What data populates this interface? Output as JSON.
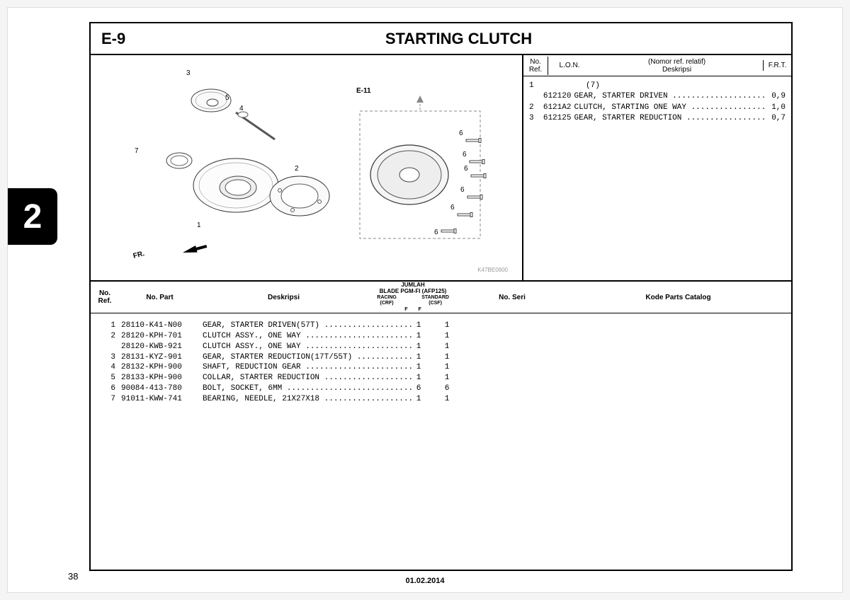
{
  "section_number": "2",
  "page_number": "38",
  "footer_date": "01.02.2014",
  "header": {
    "code": "E-9",
    "title": "STARTING CLUTCH"
  },
  "ref_panel": {
    "headers": {
      "ref": "No.\nRef.",
      "lon": "L.O.N.",
      "nomor": "(Nomor ref. relatif)",
      "desk": "Deskripsi",
      "frt": "F.R.T."
    },
    "rows": [
      {
        "ref": "1",
        "lon": "",
        "desk": "(7)",
        "frt": ""
      },
      {
        "ref": "",
        "lon": "612120",
        "desk": "GEAR, STARTER DRIVEN ....................",
        "frt": "0,9"
      },
      {
        "ref": "2",
        "lon": "6121A2",
        "desk": "CLUTCH, STARTING ONE WAY ................",
        "frt": "1,0"
      },
      {
        "ref": "3",
        "lon": "612125",
        "desk": "GEAR, STARTER REDUCTION .................",
        "frt": "0,7"
      }
    ]
  },
  "parts_table": {
    "headers": {
      "ref": "No.\nRef.",
      "part": "No. Part",
      "desk": "Deskripsi",
      "qty_title": "JUMLAH",
      "qty_sub": "BLADE PGM-FI (AFP125)",
      "qty_racing": "RACING (CRF)",
      "qty_standard": "STANDARD (CSF)",
      "qty_f1": "F",
      "qty_f2": "F",
      "seri": "No. Seri",
      "kode": "Kode Parts Catalog"
    },
    "rows": [
      {
        "ref": "1",
        "part": "28110-K41-N00",
        "desk": "GEAR, STARTER DRIVEN(57T) ...................",
        "q1": "1",
        "q2": "1"
      },
      {
        "ref": "2",
        "part": "28120-KPH-701",
        "desk": "CLUTCH ASSY., ONE WAY .......................",
        "q1": "1",
        "q2": "1"
      },
      {
        "ref": "",
        "part": "28120-KWB-921",
        "desk": "CLUTCH ASSY., ONE WAY .......................",
        "q1": "1",
        "q2": "1"
      },
      {
        "ref": "3",
        "part": "28131-KYZ-901",
        "desk": "GEAR, STARTER REDUCTION(17T/55T) ............",
        "q1": "1",
        "q2": "1"
      },
      {
        "ref": "4",
        "part": "28132-KPH-900",
        "desk": "SHAFT, REDUCTION GEAR .......................",
        "q1": "1",
        "q2": "1"
      },
      {
        "ref": "5",
        "part": "28133-KPH-900",
        "desk": "COLLAR, STARTER REDUCTION ...................",
        "q1": "1",
        "q2": "1"
      },
      {
        "ref": "",
        "part": "",
        "desk": "",
        "q1": "",
        "q2": ""
      },
      {
        "ref": "6",
        "part": "90084-413-780",
        "desk": "BOLT, SOCKET, 6MM ...........................",
        "q1": "6",
        "q2": "6"
      },
      {
        "ref": "7",
        "part": "91011-KWW-741",
        "desk": "BEARING, NEEDLE, 21X27X18 ...................",
        "q1": "1",
        "q2": "1"
      }
    ]
  },
  "diagram": {
    "e11_ref": "E-11",
    "fr_label": "FR.",
    "img_code": "K47BE0900",
    "callouts": [
      "1",
      "2",
      "3",
      "4",
      "5",
      "6",
      "6",
      "6",
      "6",
      "6",
      "6",
      "7"
    ]
  }
}
